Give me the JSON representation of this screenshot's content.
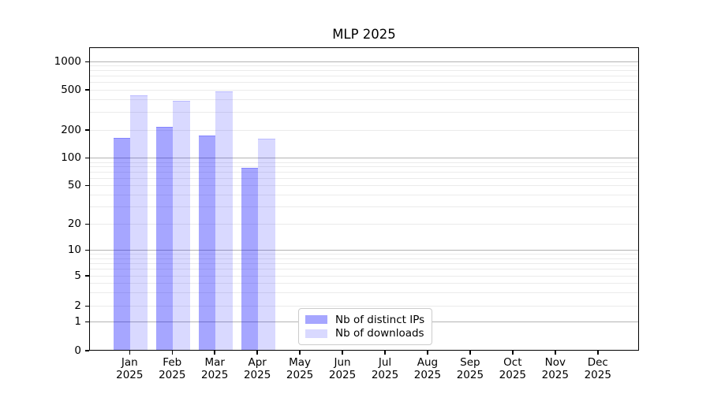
{
  "title": "MLP 2025",
  "chart_data": {
    "type": "bar",
    "title": "MLP 2025",
    "yscale": "symlog",
    "grid": "on",
    "yticks": [
      0,
      1,
      2,
      5,
      10,
      20,
      50,
      100,
      200,
      500,
      1000
    ],
    "ylim": [
      0,
      1400
    ],
    "categories": [
      {
        "month": "Jan",
        "year": "2025"
      },
      {
        "month": "Feb",
        "year": "2025"
      },
      {
        "month": "Mar",
        "year": "2025"
      },
      {
        "month": "Apr",
        "year": "2025"
      },
      {
        "month": "May",
        "year": "2025"
      },
      {
        "month": "Jun",
        "year": "2025"
      },
      {
        "month": "Jul",
        "year": "2025"
      },
      {
        "month": "Aug",
        "year": "2025"
      },
      {
        "month": "Sep",
        "year": "2025"
      },
      {
        "month": "Oct",
        "year": "2025"
      },
      {
        "month": "Nov",
        "year": "2025"
      },
      {
        "month": "Dec",
        "year": "2025"
      }
    ],
    "series": [
      {
        "key": "distinct_ips",
        "name": "Nb of distinct IPs",
        "color": "#a6a6f7",
        "css_color": "rgba(0,0,255,0.35)",
        "values": [
          163,
          210,
          171,
          77,
          null,
          null,
          null,
          null,
          null,
          null,
          null,
          null
        ]
      },
      {
        "key": "downloads",
        "name": "Nb of downloads",
        "color": "#dadaf9",
        "css_color": "rgba(0,0,255,0.15)",
        "values": [
          430,
          382,
          475,
          160,
          null,
          null,
          null,
          null,
          null,
          null,
          null,
          null
        ]
      }
    ],
    "legend": {
      "position": "lower center",
      "items": [
        "Nb of distinct IPs",
        "Nb of downloads"
      ]
    },
    "colors": {
      "major_grid": "#b3b3b3",
      "minor_grid": "#ebebeb",
      "spine": "#000000"
    }
  }
}
